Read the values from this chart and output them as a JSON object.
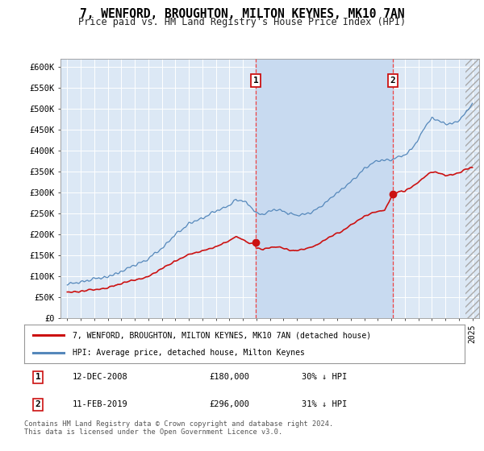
{
  "title": "7, WENFORD, BROUGHTON, MILTON KEYNES, MK10 7AN",
  "subtitle": "Price paid vs. HM Land Registry's House Price Index (HPI)",
  "background_color": "#ffffff",
  "plot_bg_color": "#dce8f5",
  "shade_color": "#c8daf0",
  "grid_color": "#ffffff",
  "hpi_color": "#5588bb",
  "price_color": "#cc1111",
  "marker1_date_x": 2008.95,
  "marker2_date_x": 2019.12,
  "marker1_price": 180000,
  "marker2_price": 296000,
  "legend_line1": "7, WENFORD, BROUGHTON, MILTON KEYNES, MK10 7AN (detached house)",
  "legend_line2": "HPI: Average price, detached house, Milton Keynes",
  "footer": "Contains HM Land Registry data © Crown copyright and database right 2024.\nThis data is licensed under the Open Government Licence v3.0.",
  "ylim": [
    0,
    620000
  ],
  "yticks": [
    0,
    50000,
    100000,
    150000,
    200000,
    250000,
    300000,
    350000,
    400000,
    450000,
    500000,
    550000,
    600000
  ],
  "xlim_start": 1994.5,
  "xlim_end": 2025.5,
  "hatch_start": 2024.5
}
